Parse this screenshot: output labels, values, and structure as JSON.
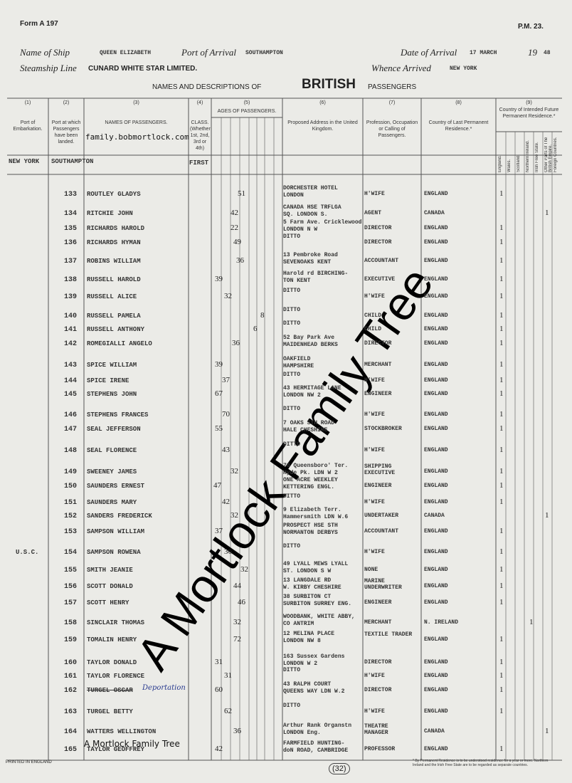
{
  "header": {
    "form": "Form A 197",
    "code": "P.M. 23.",
    "ship_label": "Name of Ship",
    "ship": "QUEEN ELIZABETH",
    "port_label": "Port of Arrival",
    "port": "SOUTHAMPTON",
    "date_label": "Date of Arrival",
    "date": "17 MARCH",
    "year_prefix": "19",
    "year": "48",
    "line_label": "Steamship Line",
    "line": "CUNARD WHITE STAR LIMITED.",
    "whence_label": "Whence Arrived",
    "whence": "NEW YORK",
    "title_pre": "NAMES AND DESCRIPTIONS OF",
    "title_main": "BRITISH",
    "title_post": "PASSENGERS"
  },
  "columns": [
    {
      "num": "(1)",
      "label": "Port of Embarkation."
    },
    {
      "num": "(2)",
      "label": "Port at which Passengers have been landed."
    },
    {
      "num": "(3)",
      "label": "NAMES OF PASSENGERS."
    },
    {
      "num": "(4)",
      "label": "CLASS. (Whether 1st, 2nd, 3rd or 4th)"
    },
    {
      "num": "(5)",
      "label": "AGES OF PASSENGERS."
    },
    {
      "num": "(6)",
      "label": "Proposed Address in the United Kingdom."
    },
    {
      "num": "(7)",
      "label": "Profession, Occupation or Calling of Passengers."
    },
    {
      "num": "(8)",
      "label": "Country of Last Permanent Residence.*"
    },
    {
      "num": "(9)",
      "label": "Country of Intended Future Permanent Residence.*"
    }
  ],
  "residence_columns": [
    "England.",
    "Wales.",
    "Scotland.",
    "Northern Ireland.",
    "Irish Free State.",
    "Other Parts of The British Empire.",
    "Foreign Countries."
  ],
  "voyage": {
    "embarked": "NEW YORK",
    "landed": "SOUTHAMPTON",
    "class": "FIRST"
  },
  "rows": [
    {
      "no": "133",
      "name": "ROUTLEY GLADYS",
      "age": "51",
      "address": [
        "DORCHESTER HOTEL",
        "LONDON"
      ],
      "occupation": "H'WIFE",
      "country": "ENGLAND",
      "residence": "1"
    },
    {
      "no": "134",
      "name": "RITCHIE JOHN",
      "age": "42",
      "address": [
        "CANADA HSE TRFLGA",
        "SQ. LONDON S."
      ],
      "occupation": "AGENT",
      "country": "CANADA",
      "residence": "1"
    },
    {
      "no": "135",
      "name": "RICHARDS HAROLD",
      "age": "22",
      "address": [
        "5 Farm Ave. Cricklewood",
        "LONDON N W"
      ],
      "occupation": "DIRECTOR",
      "country": "ENGLAND",
      "residence": "1"
    },
    {
      "no": "136",
      "name": "RICHARDS HYMAN",
      "age": "49",
      "address": [
        "DITTO"
      ],
      "occupation": "DIRECTOR",
      "country": "ENGLAND",
      "residence": "1"
    },
    {
      "no": "137",
      "name": "ROBINS WILLIAM",
      "age": "36",
      "address": [
        "13 Pembroke Road",
        "SEVENOAKS KENT"
      ],
      "occupation": "ACCOUNTANT",
      "country": "ENGLAND",
      "residence": "1"
    },
    {
      "no": "138",
      "name": "RUSSELL HAROLD",
      "age": "39",
      "address": [
        "Harold rd BIRCHING-",
        "TON KENT"
      ],
      "occupation": "EXECUTIVE",
      "country": "ENGLAND",
      "residence": "1"
    },
    {
      "no": "139",
      "name": "RUSSELL ALICE",
      "age": "32",
      "address": [
        "DITTO"
      ],
      "occupation": "H'WIFE",
      "country": "ENGLAND",
      "residence": "1"
    },
    {
      "no": "140",
      "name": "RUSSELL PAMELA",
      "age": "8",
      "address": [
        "DITTO"
      ],
      "occupation": "CHILD",
      "country": "ENGLAND",
      "residence": "1"
    },
    {
      "no": "141",
      "name": "RUSSELL ANTHONY",
      "age": "6",
      "address": [
        "DITTO"
      ],
      "occupation": "CHILD",
      "country": "ENGLAND",
      "residence": "1"
    },
    {
      "no": "142",
      "name": "ROMEGIALLI ANGELO",
      "age": "36",
      "address": [
        "52 Bay Park Ave",
        "MAIDENHEAD BERKS"
      ],
      "occupation": "DIRECTOR",
      "country": "ENGLAND",
      "residence": "1"
    },
    {
      "no": "143",
      "name": "SPICE WILLIAM",
      "age": "39",
      "address": [
        "OAKFIELD",
        "HAMPSHIRE"
      ],
      "occupation": "MERCHANT",
      "country": "ENGLAND",
      "residence": "1"
    },
    {
      "no": "144",
      "name": "SPICE IRENE",
      "age": "37",
      "address": [
        "DITTO"
      ],
      "occupation": "H'WIFE",
      "country": "ENGLAND",
      "residence": "1"
    },
    {
      "no": "145",
      "name": "STEPHENS JOHN",
      "age": "67",
      "address": [
        "43 HERMITAGE LANE",
        "LONDON NW 2"
      ],
      "occupation": "ENGINEER",
      "country": "ENGLAND",
      "residence": "1"
    },
    {
      "no": "146",
      "name": "STEPHENS FRANCES",
      "age": "70",
      "address": [
        "DITTO"
      ],
      "occupation": "H'WIFE",
      "country": "ENGLAND",
      "residence": "1"
    },
    {
      "no": "147",
      "name": "SEAL JEFFERSON",
      "age": "55",
      "address": [
        "7 OAKS STH ROAD",
        "HALE CHESHIRE"
      ],
      "occupation": "STOCKBROKER",
      "country": "ENGLAND",
      "residence": "1"
    },
    {
      "no": "148",
      "name": "SEAL FLORENCE",
      "age": "43",
      "address": [
        "DITTO"
      ],
      "occupation": "H'WIFE",
      "country": "ENGLAND",
      "residence": "1"
    },
    {
      "no": "149",
      "name": "SWEENEY JAMES",
      "age": "32",
      "address": [
        "70 Queensboro' Ter.",
        "Hyde Pk. LDN W 2"
      ],
      "occupation": "SHIPPING EXECUTIVE",
      "country": "ENGLAND",
      "residence": "1"
    },
    {
      "no": "150",
      "name": "SAUNDERS ERNEST",
      "age": "47",
      "address": [
        "ONE ACRE WEEKLEY",
        "KETTERING ENGL."
      ],
      "occupation": "ENGINEER",
      "country": "ENGLAND",
      "residence": "1"
    },
    {
      "no": "151",
      "name": "SAUNDERS MARY",
      "age": "42",
      "address": [
        "DITTO"
      ],
      "occupation": "H'WIFE",
      "country": "ENGLAND",
      "residence": "1"
    },
    {
      "no": "152",
      "name": "SANDERS FREDERICK",
      "age": "32",
      "address": [
        "9 Elizabeth Terr.",
        "Hammersmith LDN W.6"
      ],
      "occupation": "UNDERTAKER",
      "country": "CANADA",
      "residence": "1"
    },
    {
      "no": "153",
      "name": "SAMPSON WILLIAM",
      "age": "37",
      "address": [
        "PROSPECT HSE STH",
        "NORMANTON DERBYS"
      ],
      "occupation": "ACCOUNTANT",
      "country": "ENGLAND",
      "residence": "1"
    },
    {
      "no": "154",
      "port": "U.S.C.",
      "name": "SAMPSON ROWENA",
      "age": "36",
      "address": [
        "DITTO"
      ],
      "occupation": "H'WIFE",
      "country": "ENGLAND",
      "residence": "1"
    },
    {
      "no": "155",
      "name": "SMITH JEANIE",
      "age": "32",
      "address": [
        "49 LYALL MEWS LYALL",
        "ST. LONDON S W"
      ],
      "occupation": "NONE",
      "country": "ENGLAND",
      "residence": "1"
    },
    {
      "no": "156",
      "name": "SCOTT DONALD",
      "age": "44",
      "address": [
        "13 LANGDALE RD",
        "W. KIRBY CHESHIRE"
      ],
      "occupation": "MARINE UNDERWRITER",
      "country": "ENGLAND",
      "residence": "1"
    },
    {
      "no": "157",
      "name": "SCOTT HENRY",
      "age": "46",
      "address": [
        "38 SURBITON CT",
        "SURBITON SURREY ENG."
      ],
      "occupation": "ENGINEER",
      "country": "ENGLAND",
      "residence": "1"
    },
    {
      "no": "158",
      "name": "SINCLAIR THOMAS",
      "age": "32",
      "address": [
        "WOODBANK, WHITE ABBY,",
        "CO ANTRIM"
      ],
      "occupation": "MERCHANT",
      "country": "N. IRELAND",
      "residence": "1"
    },
    {
      "no": "159",
      "name": "TOMALIN HENRY",
      "age": "72",
      "address": [
        "12 MELINA PLACE",
        "LONDON NW 8"
      ],
      "occupation": "TEXTILE TRADER",
      "country": "ENGLAND",
      "residence": "1"
    },
    {
      "no": "160",
      "name": "TAYLOR DONALD",
      "age": "31",
      "address": [
        "163 Sussex Gardens",
        "LONDON W 2"
      ],
      "occupation": "DIRECTOR",
      "country": "ENGLAND",
      "residence": "1"
    },
    {
      "no": "161",
      "name": "TAYLOR FLORENCE",
      "age": "31",
      "address": [
        "DITTO"
      ],
      "occupation": "H'WIFE",
      "country": "ENGLAND",
      "residence": "1"
    },
    {
      "no": "162",
      "name": "TURGEL OSCAR",
      "note": "Deportation",
      "age": "60",
      "address": [
        "43 RALPH COURT",
        "QUEENS WAY LDN W.2"
      ],
      "occupation": "DIRECTOR",
      "country": "ENGLAND",
      "residence": "1"
    },
    {
      "no": "163",
      "name": "TURGEL BETTY",
      "age": "62",
      "address": [
        "DITTO"
      ],
      "occupation": "H'WIFE",
      "country": "ENGLAND",
      "residence": "1"
    },
    {
      "no": "164",
      "name": "WATTERS WELLINGTON",
      "age": "36",
      "address": [
        "Arthur Rank Organstn",
        "LONDON Eng."
      ],
      "occupation": "THEATRE MANAGER",
      "country": "CANADA",
      "residence": "1"
    },
    {
      "no": "165",
      "name": "TAYLOR GEOFFREY",
      "age": "42",
      "address": [
        "FARMFIELD HUNTING-",
        "doN ROAD, CAMBRIDGE"
      ],
      "occupation": "PROFESSOR",
      "country": "ENGLAND",
      "residence": "1"
    }
  ],
  "footer": {
    "printer": "PRINTED IN ENGLAND",
    "page": "(32)",
    "note": "* By Permanent Residence is to be understood residence for a year or more. Northern Ireland and the Irish Free State are to be regarded as separate countries."
  },
  "watermark": {
    "site": "family.bobmortlock.com",
    "small": "A Mortlock Family Tree",
    "large": "A Mortlock Family Tree"
  }
}
